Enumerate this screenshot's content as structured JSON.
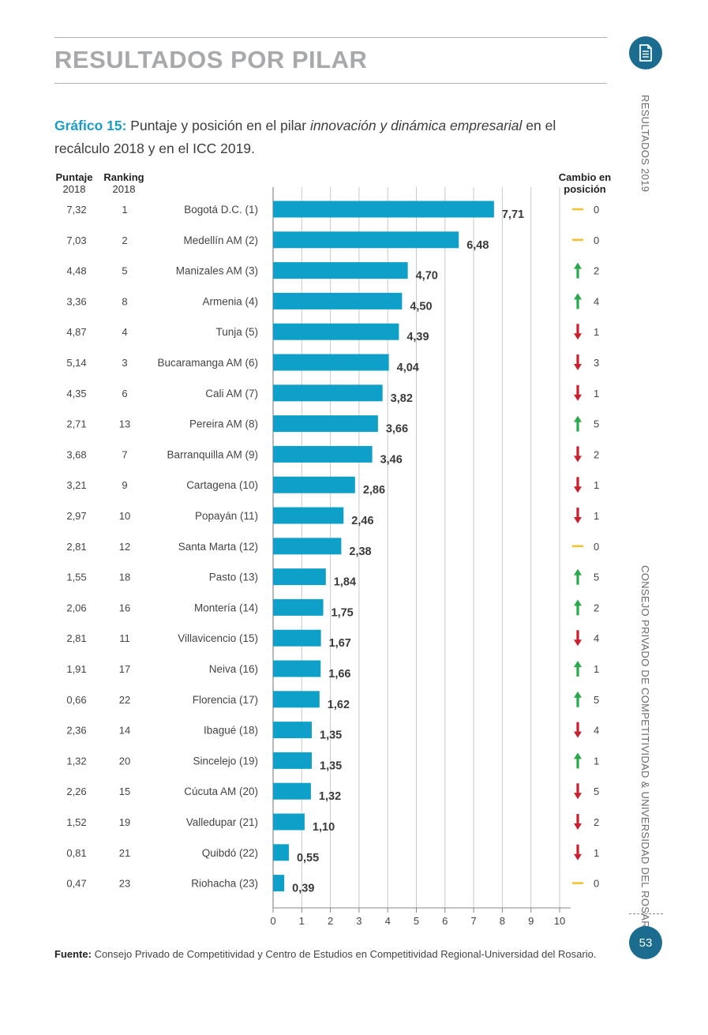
{
  "section_title": "RESULTADOS POR PILAR",
  "caption": {
    "lead": "Gráfico 15:",
    "text_before": " Puntaje y posición en el pilar ",
    "italic": "innovación y dinámica empresarial",
    "text_after": " en el recálculo 2018 y en el ICC 2019."
  },
  "side_labels": {
    "top": "RESULTADOS 2019",
    "bottom": "CONSEJO PRIVADO DE COMPETITIVIDAD & UNIVERSIDAD DEL ROSARIO"
  },
  "page_number": "53",
  "headers": {
    "score_2018": [
      "Puntaje",
      "2018"
    ],
    "rank_2018": [
      "Ranking",
      "2018"
    ],
    "change": [
      "Cambio en",
      "posición"
    ]
  },
  "source": {
    "label": "Fuente:",
    "text": " Consejo Privado de Competitividad y Centro de Estudios en Competitividad Regional-Universidad del Rosario."
  },
  "colors": {
    "bar": "#0ea0c8",
    "up": "#2aa84a",
    "down": "#c8202e",
    "same": "#f2c230",
    "accent": "#1a9cc4"
  },
  "chart_data": {
    "type": "bar",
    "orientation": "horizontal",
    "xlim": [
      0,
      10
    ],
    "xticks": [
      "0",
      "1",
      "2",
      "3",
      "4",
      "5",
      "6",
      "7",
      "8",
      "9",
      "10"
    ],
    "grid": true,
    "categories": [
      "Bogotá D.C. (1)",
      "Medellín AM (2)",
      "Manizales AM (3)",
      "Armenia (4)",
      "Tunja (5)",
      "Bucaramanga AM (6)",
      "Cali AM (7)",
      "Pereira AM (8)",
      "Barranquilla AM (9)",
      "Cartagena (10)",
      "Popayán (11)",
      "Santa Marta (12)",
      "Pasto (13)",
      "Montería (14)",
      "Villavicencio (15)",
      "Neiva (16)",
      "Florencia (17)",
      "Ibagué (18)",
      "Sincelejo (19)",
      "Cúcuta AM (20)",
      "Valledupar (21)",
      "Quibdó (22)",
      "Riohacha (23)"
    ],
    "values": [
      7.71,
      6.48,
      4.7,
      4.5,
      4.39,
      4.04,
      3.82,
      3.66,
      3.46,
      2.86,
      2.46,
      2.38,
      1.84,
      1.75,
      1.67,
      1.66,
      1.62,
      1.35,
      1.35,
      1.32,
      1.1,
      0.55,
      0.39
    ],
    "value_labels": [
      "7,71",
      "6,48",
      "4,70",
      "4,50",
      "4,39",
      "4,04",
      "3,82",
      "3,66",
      "3,46",
      "2,86",
      "2,46",
      "2,38",
      "1,84",
      "1,75",
      "1,67",
      "1,66",
      "1,62",
      "1,35",
      "1,35",
      "1,32",
      "1,10",
      "0,55",
      "0,39"
    ],
    "score_2018": [
      "7,32",
      "7,03",
      "4,48",
      "3,36",
      "4,87",
      "5,14",
      "4,35",
      "2,71",
      "3,68",
      "3,21",
      "2,97",
      "2,81",
      "1,55",
      "2,06",
      "2,81",
      "1,91",
      "0,66",
      "2,36",
      "1,32",
      "2,26",
      "1,52",
      "0,81",
      "0,47"
    ],
    "rank_2018": [
      "1",
      "2",
      "5",
      "8",
      "4",
      "3",
      "6",
      "13",
      "7",
      "9",
      "10",
      "12",
      "18",
      "16",
      "11",
      "17",
      "22",
      "14",
      "20",
      "15",
      "19",
      "21",
      "23"
    ],
    "change_direction": [
      "same",
      "same",
      "up",
      "up",
      "down",
      "down",
      "down",
      "up",
      "down",
      "down",
      "down",
      "same",
      "up",
      "up",
      "down",
      "up",
      "up",
      "down",
      "up",
      "down",
      "down",
      "down",
      "same"
    ],
    "change_value": [
      "0",
      "0",
      "2",
      "4",
      "1",
      "3",
      "1",
      "5",
      "2",
      "1",
      "1",
      "0",
      "5",
      "2",
      "4",
      "1",
      "5",
      "4",
      "1",
      "5",
      "2",
      "1",
      "0"
    ]
  }
}
